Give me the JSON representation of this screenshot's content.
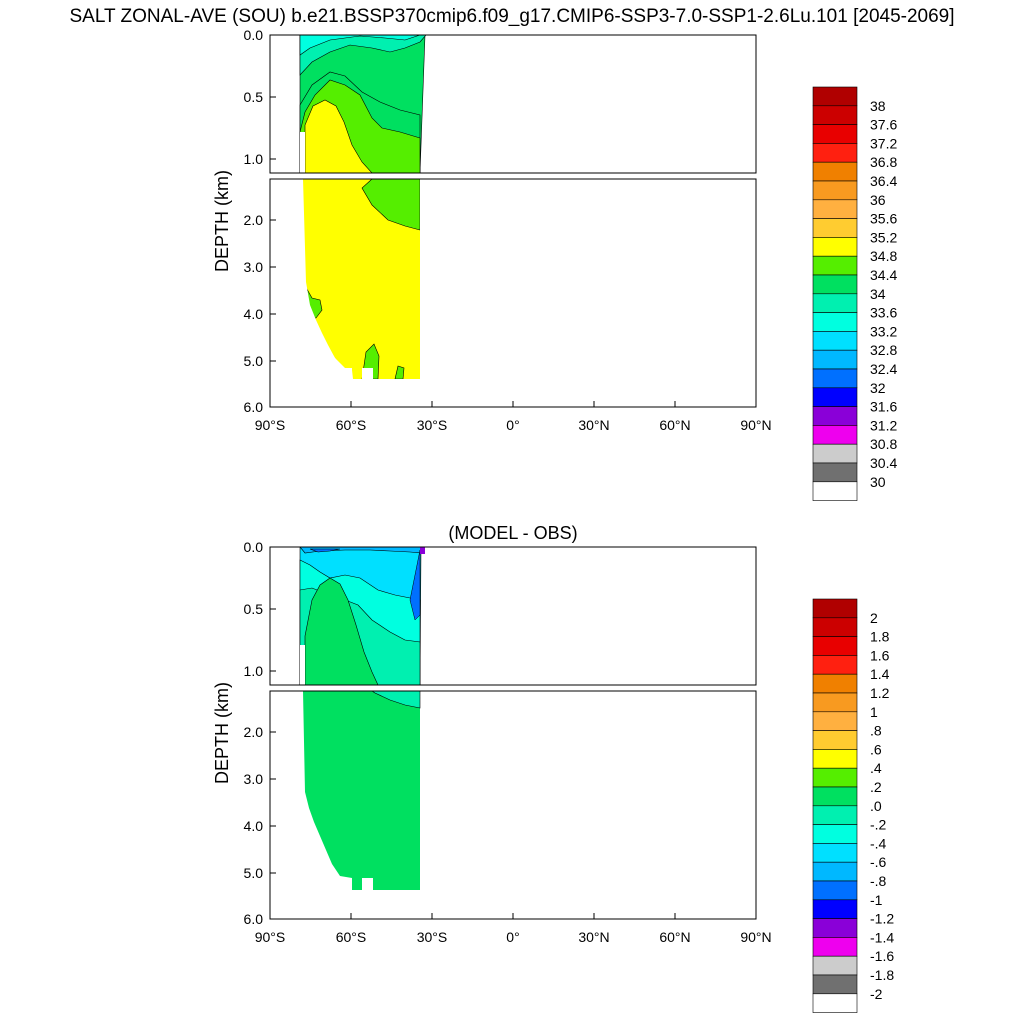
{
  "title": "SALT ZONAL-AVE (SOU) b.e21.BSSP370cmip6.f09_g17.CMIP6-SSP3-7.0-SSP1-2.6Lu.101 [2045-2069]",
  "chart_data": [
    {
      "type": "heatmap",
      "title": "",
      "xlabel": "",
      "ylabel": "DEPTH (km)",
      "xlim": [
        -90,
        90
      ],
      "ylim": [
        6.0,
        0.0
      ],
      "x_ticks": [
        "90°S",
        "60°S",
        "30°S",
        "0°",
        "30°N",
        "60°N",
        "90°N"
      ],
      "y_ticks_upper": [
        "0.0",
        "0.5",
        "1.0"
      ],
      "y_ticks_lower": [
        "2.0",
        "3.0",
        "4.0",
        "5.0",
        "6.0"
      ],
      "data_extent_lat": [
        -78,
        -34
      ],
      "colorbar_labels": [
        "38",
        "37.6",
        "37.2",
        "36.8",
        "36.4",
        "36",
        "35.6",
        "35.2",
        "34.8",
        "34.4",
        "34",
        "33.6",
        "33.2",
        "32.8",
        "32.4",
        "32",
        "31.6",
        "31.2",
        "30.8",
        "30.4",
        "30"
      ],
      "colorbar_colors": [
        "#b00000",
        "#cc0000",
        "#e80000",
        "#ff2010",
        "#f08000",
        "#f89a20",
        "#ffb040",
        "#ffcc30",
        "#ffff00",
        "#55ee00",
        "#00e060",
        "#00f0b0",
        "#00ffe0",
        "#00e0ff",
        "#00b8ff",
        "#0070ff",
        "#0000ff",
        "#8a00d8",
        "#ee00ee",
        "#cccccc",
        "#707070",
        "#ffffff"
      ]
    },
    {
      "type": "heatmap",
      "title": "(MODEL - OBS)",
      "xlabel": "",
      "ylabel": "DEPTH (km)",
      "xlim": [
        -90,
        90
      ],
      "ylim": [
        6.0,
        0.0
      ],
      "x_ticks": [
        "90°S",
        "60°S",
        "30°S",
        "0°",
        "30°N",
        "60°N",
        "90°N"
      ],
      "y_ticks_upper": [
        "0.0",
        "0.5",
        "1.0"
      ],
      "y_ticks_lower": [
        "2.0",
        "3.0",
        "4.0",
        "5.0",
        "6.0"
      ],
      "data_extent_lat": [
        -78,
        -34
      ],
      "colorbar_labels": [
        "2",
        "1.8",
        "1.6",
        "1.4",
        "1.2",
        "1",
        ".8",
        ".6",
        ".4",
        ".2",
        ".0",
        "-.2",
        "-.4",
        "-.6",
        "-.8",
        "-1",
        "-1.2",
        "-1.4",
        "-1.6",
        "-1.8",
        "-2"
      ],
      "colorbar_colors": [
        "#b00000",
        "#cc0000",
        "#e80000",
        "#ff2010",
        "#f08000",
        "#f89a20",
        "#ffb040",
        "#ffcc30",
        "#ffff00",
        "#55ee00",
        "#00e060",
        "#00f0b0",
        "#00ffe0",
        "#00e0ff",
        "#00b8ff",
        "#0070ff",
        "#0000ff",
        "#8a00d8",
        "#ee00ee",
        "#cccccc",
        "#707070",
        "#ffffff"
      ]
    }
  ]
}
